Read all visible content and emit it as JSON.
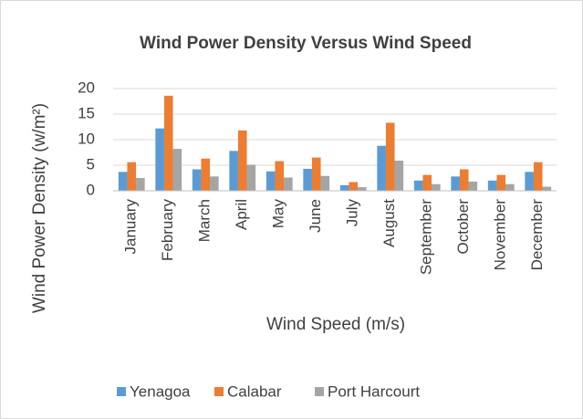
{
  "chart_data": {
    "type": "bar",
    "title": "Wind Power Density Versus Wind Speed",
    "x_label": "Wind Speed (m/s)",
    "y_label": "Wind Power Density (w/m²)",
    "categories": [
      "January",
      "February",
      "March",
      "April",
      "May",
      "June",
      "July",
      "August",
      "September",
      "October",
      "November",
      "December"
    ],
    "series": [
      {
        "name": "Yenagoa",
        "color": "#5b9bd5",
        "values": [
          3.7,
          12.2,
          4.2,
          7.8,
          3.8,
          4.3,
          1.1,
          8.8,
          2.0,
          2.8,
          2.0,
          3.7
        ]
      },
      {
        "name": "Calabar",
        "color": "#ed7d31",
        "values": [
          5.6,
          18.6,
          6.3,
          11.8,
          5.8,
          6.5,
          1.7,
          13.3,
          3.1,
          4.2,
          3.1,
          5.6
        ]
      },
      {
        "name": "Port Harcourt",
        "color": "#a5a5a5",
        "values": [
          2.5,
          8.2,
          2.8,
          5.1,
          2.6,
          2.9,
          0.7,
          5.9,
          1.3,
          1.8,
          1.3,
          0.8
        ]
      }
    ],
    "ylim": [
      0,
      20
    ],
    "yticks": [
      0,
      5,
      10,
      15,
      20
    ],
    "grid": true,
    "legend": "bottom"
  }
}
